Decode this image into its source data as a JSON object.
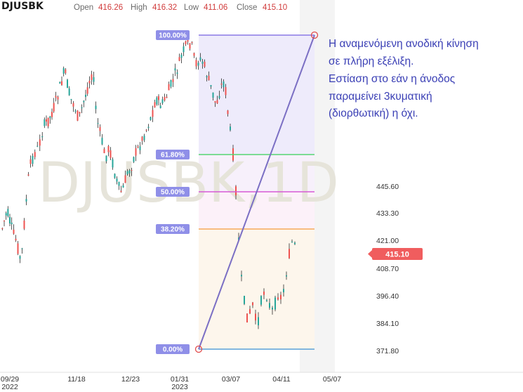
{
  "header": {
    "symbol": "DJUSBK",
    "open_label": "Open",
    "open_value": "416.26",
    "high_label": "High",
    "high_value": "416.32",
    "low_label": "Low",
    "low_value": "411.06",
    "close_label": "Close",
    "close_value": "415.10"
  },
  "watermark": "DJUSBK,1D",
  "annotation": {
    "lines": [
      "Η αναμενόμενη ανοδική κίνηση",
      "σε πλήρη εξέλιξη.",
      "Εστίαση στο εάν η άνοδος",
      "παραμείνει 3κυματική",
      "(διορθωτική) η όχι."
    ]
  },
  "chart_data": {
    "type": "candlestick",
    "y_axis": {
      "ticks": [
        "445.60",
        "433.30",
        "421.00",
        "408.70",
        "396.40",
        "384.10",
        "371.80"
      ],
      "tick_values": [
        445.6,
        433.3,
        421.0,
        408.7,
        396.4,
        384.1,
        371.8
      ]
    },
    "x_axis": {
      "ticks": [
        "09/29\n2022",
        "11/18",
        "12/23",
        "01/31\n2023",
        "03/07",
        "04/11",
        "05/07"
      ]
    },
    "last_price": "415.10",
    "fibonacci": {
      "levels": [
        {
          "label": "100.00%",
          "color": "#8c7ae6"
        },
        {
          "label": "61.80%",
          "color": "#55d672"
        },
        {
          "label": "50.00%",
          "color": "#d65ad6"
        },
        {
          "label": "38.20%",
          "color": "#f7a95a"
        },
        {
          "label": "0.00%",
          "color": "#5aa0d6"
        }
      ]
    },
    "colors": {
      "up": "#26a69a",
      "down": "#ef5350",
      "wick": "#333333",
      "trend_line": "#7b6fc4",
      "price_tag": "#f05d5e"
    }
  }
}
